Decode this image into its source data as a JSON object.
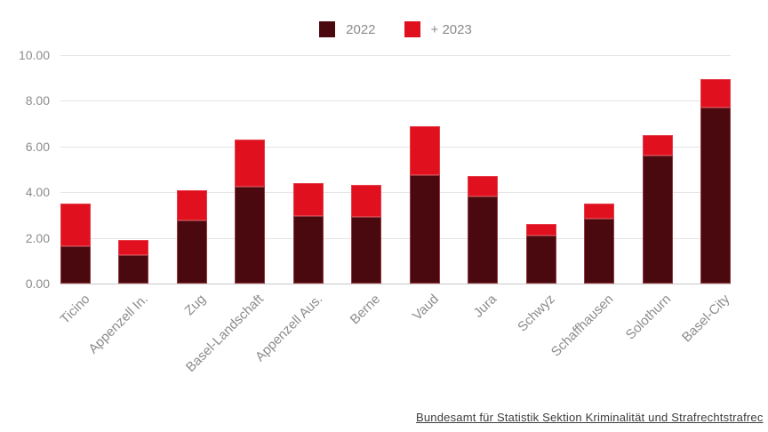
{
  "legend": {
    "items": [
      {
        "label": "2022"
      },
      {
        "label": "+ 2023"
      }
    ]
  },
  "source_link": "Bundesamt für Statistik Sektion Kriminalität und Strafrechtstrafrec",
  "colors": {
    "series_2022": "#4a090e",
    "series_2023": "#e1101f",
    "gridline": "#e4e4e4",
    "baseline": "#c9c9c9",
    "axis_text": "#8c8c8c",
    "source_text": "#3c3c3c"
  },
  "chart_data": {
    "type": "bar",
    "stacked": true,
    "title": "",
    "xlabel": "",
    "ylabel": "",
    "categories": [
      "Ticino",
      "Appenzell In.",
      "Zug",
      "Basel-Landschaft",
      "Appenzell Aus.",
      "Berne",
      "Vaud",
      "Jura",
      "Schwyz",
      "Schaffhausen",
      "Solothurn",
      "Basel-City"
    ],
    "series": [
      {
        "name": "2022",
        "color": "#4a090e",
        "values": [
          1.65,
          1.25,
          2.75,
          4.25,
          2.95,
          2.9,
          4.75,
          3.8,
          2.1,
          2.85,
          5.6,
          7.7
        ]
      },
      {
        "name": "+ 2023",
        "color": "#e1101f",
        "values": [
          1.85,
          0.65,
          1.35,
          2.05,
          1.45,
          1.4,
          2.15,
          0.9,
          0.5,
          0.65,
          0.9,
          1.25
        ]
      }
    ],
    "stack_totals": [
      3.5,
      1.9,
      4.1,
      6.3,
      4.4,
      4.3,
      6.9,
      4.7,
      2.6,
      3.5,
      6.5,
      8.95
    ],
    "ylim": [
      0,
      10
    ],
    "yticks": [
      "0.00",
      "2.00",
      "4.00",
      "6.00",
      "8.00",
      "10.00"
    ],
    "grid": true,
    "legend_position": "top"
  }
}
